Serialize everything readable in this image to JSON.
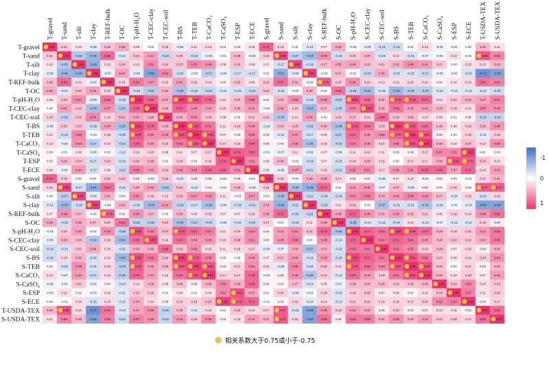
{
  "chart_data": {
    "type": "heatmap",
    "labels": [
      "T-gravel",
      "T-sand",
      "T-silt",
      "T-clay",
      "T-REF-bulk",
      "T-OC",
      "T-pH-H₂O",
      "T-CEC-clay",
      "T-CEC-soil",
      "T-BS",
      "T-TEB",
      "T-CaCO₃",
      "T-CaSO₄",
      "T-ESP",
      "T-ECE",
      "S-gravel",
      "S-sand",
      "S-silt",
      "S-clay",
      "S-REF-bulk",
      "S-OC",
      "S-pH-H₂O",
      "S-CEC-clay",
      "S-CEC-soil",
      "S-BS",
      "S-TEB",
      "S-CaCO₃",
      "S-CaSO₄",
      "S-ESP",
      "S-ECE",
      "T-USDA-TEX",
      "S-USDA-TEX"
    ],
    "values": [
      [
        1.0,
        0.21,
        0.1,
        -0.09,
        0.25,
        0.35,
        0.08,
        0.0,
        0.18,
        -0.08,
        0.11,
        0.14,
        0.04,
        0.03,
        0.09,
        0.74,
        0.16,
        0.0,
        -0.12,
        0.07,
        0.36,
        -0.03,
        -0.08,
        -0.19,
        -0.19,
        0.02,
        0.14,
        -0.06,
        -0.03,
        0.0,
        0.29,
        0.11
      ],
      [
        0.21,
        1.0,
        -0.32,
        -0.46,
        0.69,
        -0.12,
        0.24,
        0.41,
        -0.23,
        0.2,
        -0.19,
        -0.08,
        -0.01,
        0.29,
        -0.06,
        0.19,
        0.9,
        -0.27,
        -0.43,
        0.49,
        -0.18,
        0.2,
        0.3,
        -0.15,
        0.14,
        -0.16,
        -0.07,
        -0.04,
        0.12,
        -0.01,
        0.8,
        0.55
      ],
      [
        0.1,
        -0.32,
        1.0,
        -0.49,
        0.12,
        0.24,
        0.12,
        0.51,
        0.22,
        0.23,
        0.53,
        0.48,
        0.09,
        0.24,
        0.09,
        0.07,
        -0.17,
        0.9,
        -0.19,
        0.27,
        0.35,
        0.4,
        0.26,
        0.21,
        0.32,
        0.49,
        0.42,
        0.21,
        0.0,
        0.13,
        0.13,
        0.29
      ],
      [
        -0.09,
        -0.46,
        -0.49,
        1.0,
        -0.07,
        0.4,
        -0.09,
        -0.58,
        0.54,
        -0.19,
        -0.03,
        -0.27,
        -0.06,
        -0.17,
        -0.17,
        0.02,
        -0.51,
        -0.09,
        0.94,
        -0.02,
        0.27,
        -0.02,
        -0.23,
        0.36,
        -0.16,
        -0.15,
        -0.21,
        -0.05,
        -0.03,
        -0.15,
        -0.71,
        -0.59
      ],
      [
        0.25,
        0.69,
        0.12,
        -0.07,
        1.0,
        0.15,
        0.62,
        0.47,
        0.15,
        0.4,
        0.16,
        0.14,
        0.03,
        0.23,
        0.09,
        0.22,
        0.67,
        0.31,
        -0.04,
        0.76,
        0.2,
        0.49,
        0.18,
        0.13,
        0.13,
        0.15,
        0.14,
        0.04,
        0.1,
        0.14,
        0.63,
        0.56
      ],
      [
        0.35,
        -0.12,
        0.24,
        0.4,
        0.15,
        1.0,
        -0.18,
        -0.31,
        0.31,
        -0.38,
        -0.19,
        -0.24,
        -0.12,
        -0.16,
        -0.22,
        0.23,
        -0.15,
        -0.03,
        0.32,
        0.02,
        0.63,
        -0.26,
        -0.41,
        -0.15,
        -0.43,
        -0.29,
        -0.29,
        -0.14,
        -0.11,
        -0.13,
        -0.13,
        -0.2
      ],
      [
        0.08,
        0.24,
        0.51,
        -0.09,
        0.62,
        -0.18,
        1.0,
        0.69,
        0.37,
        0.9,
        0.82,
        0.7,
        0.13,
        0.26,
        0.58,
        0.04,
        0.3,
        0.5,
        -0.18,
        0.48,
        -0.26,
        0.85,
        0.65,
        0.32,
        0.78,
        0.78,
        0.71,
        0.13,
        0.22,
        0.34,
        0.37,
        0.57
      ],
      [
        0.0,
        0.41,
        0.22,
        -0.38,
        0.47,
        -0.31,
        0.69,
        1.0,
        0.29,
        0.7,
        0.49,
        0.4,
        0.16,
        0.3,
        0.42,
        -0.04,
        0.4,
        0.19,
        -0.43,
        0.27,
        -0.26,
        0.53,
        0.87,
        0.32,
        0.62,
        0.4,
        0.41,
        0.29,
        0.19,
        0.14,
        0.5,
        0.48
      ],
      [
        0.18,
        -0.25,
        0.23,
        0.54,
        0.15,
        0.31,
        0.37,
        0.29,
        1.0,
        0.3,
        0.48,
        0.23,
        0.08,
        0.02,
        0.22,
        0.22,
        -0.33,
        0.13,
        0.42,
        0.0,
        0.22,
        0.27,
        0.16,
        0.68,
        0.24,
        0.29,
        0.13,
        0.09,
        0.01,
        0.05,
        -0.25,
        -0.24
      ],
      [
        -0.08,
        0.2,
        0.23,
        -0.19,
        0.4,
        -0.38,
        0.9,
        0.7,
        0.3,
        1.0,
        0.82,
        0.61,
        0.11,
        0.19,
        0.48,
        -0.1,
        0.24,
        0.25,
        -0.25,
        0.3,
        -0.38,
        0.79,
        0.64,
        0.23,
        0.94,
        0.8,
        0.63,
        0.26,
        0.09,
        0.19,
        0.26,
        0.46
      ],
      [
        0.11,
        -0.19,
        0.53,
        -0.03,
        0.16,
        -0.19,
        0.82,
        0.49,
        0.48,
        0.82,
        1.0,
        0.8,
        0.07,
        0.03,
        0.53,
        0.04,
        -0.12,
        0.47,
        -0.17,
        0.09,
        -0.27,
        0.67,
        0.45,
        0.5,
        0.75,
        0.93,
        0.81,
        0.05,
        0.01,
        0.18,
        -0.11,
        0.19
      ],
      [
        0.14,
        -0.08,
        0.48,
        -0.27,
        0.14,
        -0.24,
        0.7,
        0.4,
        0.23,
        0.61,
        0.8,
        1.0,
        0.17,
        0.16,
        0.69,
        0.05,
        0.04,
        0.48,
        -0.38,
        0.15,
        -0.23,
        0.57,
        0.46,
        0.15,
        0.55,
        0.81,
        0.97,
        0.3,
        0.1,
        0.27,
        0.14,
        0.5
      ],
      [
        0.04,
        -0.01,
        0.09,
        -0.06,
        0.03,
        -0.12,
        0.13,
        0.16,
        0.08,
        0.11,
        0.07,
        0.17,
        1.0,
        0.74,
        0.69,
        -0.03,
        -0.07,
        0.11,
        -0.08,
        0.07,
        -0.08,
        0.11,
        0.15,
        0.11,
        0.03,
        0.04,
        0.17,
        0.53,
        0.51,
        0.92,
        0.01,
        0.03
      ],
      [
        0.03,
        0.29,
        0.24,
        -0.17,
        0.23,
        -0.16,
        0.26,
        0.3,
        0.02,
        0.19,
        0.03,
        0.16,
        0.74,
        1.0,
        0.51,
        0.06,
        0.3,
        -0.03,
        -0.19,
        0.07,
        -0.15,
        0.19,
        0.29,
        0.15,
        0.0,
        0.17,
        0.17,
        0.33,
        0.82,
        0.75,
        0.24,
        0.13
      ],
      [
        0.09,
        -0.06,
        0.44,
        -0.17,
        0.09,
        -0.22,
        0.58,
        0.42,
        0.22,
        0.48,
        0.53,
        0.69,
        0.69,
        0.51,
        1.0,
        0.06,
        -0.08,
        0.47,
        -0.21,
        0.15,
        -0.22,
        0.52,
        0.51,
        0.17,
        0.46,
        0.51,
        0.7,
        0.69,
        0.37,
        0.71,
        0.14,
        0.42
      ],
      [
        0.74,
        0.19,
        0.02,
        0.0,
        0.23,
        0.23,
        0.06,
        -0.04,
        0.22,
        -0.1,
        0.06,
        0.05,
        -0.03,
        0.06,
        -0.01,
        1.0,
        0.18,
        -0.01,
        0.33,
        0.36,
        0.17,
        0.04,
        0.04,
        -0.09,
        0.07,
        0.12,
        -0.04,
        0.04,
        0.01,
        -0.01,
        0.17,
        0.31
      ],
      [
        0.16,
        0.9,
        -0.17,
        -0.51,
        0.67,
        -0.15,
        0.3,
        0.4,
        -0.33,
        0.24,
        -0.12,
        0.04,
        -0.04,
        0.3,
        -0.08,
        0.18,
        1.0,
        -0.38,
        -0.49,
        0.71,
        0.01,
        0.41,
        0.45,
        -0.07,
        0.27,
        -0.09,
        0.06,
        0.03,
        0.18,
        0.03,
        0.77,
        0.77
      ],
      [
        0.0,
        -0.27,
        0.9,
        -0.09,
        0.31,
        -0.03,
        0.5,
        0.19,
        0.13,
        0.25,
        0.47,
        0.48,
        0.11,
        -0.03,
        0.47,
        -0.01,
        -0.38,
        1.0,
        -0.21,
        -0.2,
        -0.18,
        0.51,
        0.59,
        0.33,
        0.44,
        0.55,
        0.48,
        0.27,
        -0.09,
        0.16,
        -0.15,
        0.15
      ],
      [
        -0.12,
        -0.43,
        -0.19,
        0.94,
        -0.04,
        0.32,
        -0.18,
        -0.43,
        0.42,
        -0.25,
        -0.17,
        -0.38,
        -0.08,
        -0.19,
        -0.21,
        0.33,
        -0.49,
        -0.21,
        1.0,
        -0.22,
        0.11,
        0.24,
        0.0,
        -0.37,
        -0.16,
        -0.16,
        -0.35,
        -0.14,
        -0.03,
        -0.1,
        -0.59,
        -0.59
      ],
      [
        0.07,
        0.49,
        0.27,
        -0.02,
        0.76,
        0.02,
        0.48,
        0.27,
        0.0,
        0.3,
        0.09,
        0.15,
        0.07,
        0.07,
        0.15,
        0.36,
        0.71,
        -0.2,
        -0.22,
        1.0,
        0.38,
        0.72,
        0.48,
        0.31,
        0.43,
        0.25,
        0.21,
        0.08,
        0.18,
        0.14,
        0.48,
        0.65
      ],
      [
        0.36,
        -0.18,
        0.35,
        0.27,
        0.2,
        0.63,
        -0.26,
        -0.26,
        0.22,
        -0.38,
        -0.27,
        -0.23,
        -0.08,
        -0.15,
        -0.22,
        0.17,
        0.01,
        -0.18,
        0.11,
        0.38,
        1.0,
        -0.35,
        -0.13,
        -0.15,
        -0.19,
        0.12,
        -0.13,
        -0.07,
        -0.13,
        -0.13,
        0.19,
        0.06
      ],
      [
        -0.03,
        0.2,
        0.4,
        -0.02,
        0.49,
        -0.26,
        0.85,
        0.53,
        0.27,
        0.79,
        0.67,
        0.57,
        0.11,
        0.19,
        0.52,
        0.04,
        0.41,
        0.51,
        0.24,
        0.72,
        -0.35,
        1.0,
        0.71,
        0.63,
        0.89,
        0.79,
        0.67,
        0.28,
        0.18,
        0.21,
        0.44,
        0.62
      ],
      [
        -0.08,
        0.3,
        0.26,
        -0.32,
        0.18,
        -0.41,
        0.65,
        0.87,
        0.16,
        0.64,
        0.45,
        0.46,
        0.15,
        0.29,
        0.51,
        0.04,
        0.45,
        0.59,
        0.0,
        0.48,
        -0.13,
        0.71,
        1.0,
        0.61,
        0.71,
        0.65,
        0.43,
        0.28,
        0.24,
        0.22,
        0.34,
        0.6
      ],
      [
        -0.19,
        -0.15,
        0.21,
        0.36,
        0.13,
        -0.15,
        0.32,
        0.32,
        0.68,
        0.23,
        0.5,
        0.15,
        0.11,
        0.15,
        0.17,
        -0.09,
        -0.07,
        0.33,
        -0.37,
        0.31,
        -0.15,
        0.63,
        0.61,
        1.0,
        0.61,
        0.53,
        0.19,
        0.28,
        0.07,
        0.15,
        0.05,
        0.31
      ],
      [
        -0.19,
        0.14,
        0.32,
        -0.16,
        0.13,
        -0.43,
        0.83,
        0.62,
        0.24,
        0.94,
        0.75,
        0.55,
        0.03,
        0.0,
        0.46,
        0.07,
        0.27,
        0.44,
        -0.16,
        0.43,
        -0.19,
        0.89,
        0.71,
        0.61,
        1.0,
        0.81,
        0.61,
        0.22,
        0.09,
        0.16,
        0.2,
        0.5
      ],
      [
        0.02,
        -0.16,
        0.49,
        -0.15,
        0.15,
        -0.29,
        0.78,
        0.4,
        0.29,
        0.8,
        0.93,
        0.81,
        0.04,
        0.17,
        0.51,
        0.12,
        -0.09,
        0.55,
        -0.16,
        0.25,
        0.12,
        0.79,
        0.65,
        0.53,
        0.81,
        1.0,
        0.83,
        0.25,
        0.02,
        0.17,
        0.04,
        0.3
      ],
      [
        0.14,
        -0.07,
        0.42,
        -0.21,
        0.14,
        -0.29,
        0.71,
        0.41,
        0.13,
        0.63,
        0.81,
        0.97,
        0.17,
        0.17,
        0.7,
        -0.04,
        0.06,
        0.48,
        -0.35,
        0.21,
        -0.13,
        0.67,
        0.43,
        0.19,
        0.61,
        0.83,
        1.0,
        0.3,
        0.12,
        0.2,
        0.07,
        0.42
      ],
      [
        -0.06,
        -0.04,
        0.21,
        -0.05,
        0.04,
        -0.14,
        0.13,
        0.29,
        0.09,
        0.26,
        0.05,
        0.3,
        0.53,
        0.33,
        0.69,
        0.04,
        0.03,
        0.27,
        -0.14,
        0.08,
        -0.07,
        0.28,
        0.28,
        0.28,
        0.22,
        0.25,
        0.3,
        1.0,
        0.24,
        0.52,
        0.13,
        0.22
      ],
      [
        -0.03,
        0.12,
        0.02,
        -0.03,
        0.1,
        -0.11,
        0.22,
        0.19,
        0.01,
        0.09,
        0.01,
        0.1,
        0.51,
        0.82,
        0.37,
        0.01,
        0.18,
        -0.09,
        -0.03,
        0.18,
        -0.13,
        0.18,
        0.24,
        0.07,
        0.09,
        0.02,
        0.12,
        0.24,
        1.0,
        0.57,
        0.11,
        0.2
      ],
      [
        0.0,
        -0.01,
        0.13,
        -0.15,
        0.14,
        -0.13,
        0.34,
        0.14,
        0.05,
        0.19,
        0.18,
        0.27,
        0.92,
        0.75,
        0.71,
        -0.01,
        0.03,
        0.16,
        -0.1,
        0.14,
        -0.13,
        0.21,
        0.22,
        0.15,
        0.16,
        0.17,
        0.2,
        0.52,
        0.57,
        1.0,
        0.04,
        0.17
      ],
      [
        0.29,
        0.8,
        0.13,
        -0.71,
        0.63,
        -0.13,
        0.37,
        0.5,
        -0.25,
        0.26,
        -0.11,
        0.14,
        0.01,
        0.24,
        0.14,
        0.17,
        0.77,
        -0.15,
        -0.59,
        0.48,
        0.19,
        0.44,
        0.34,
        0.05,
        0.2,
        0.04,
        0.07,
        0.13,
        0.11,
        0.04,
        1.0,
        0.66
      ],
      [
        0.11,
        0.55,
        0.29,
        -0.59,
        0.56,
        -0.2,
        0.57,
        0.48,
        -0.24,
        0.46,
        0.19,
        0.5,
        0.03,
        0.13,
        0.42,
        0.31,
        0.77,
        0.15,
        -0.59,
        0.65,
        0.06,
        0.62,
        0.6,
        0.31,
        0.5,
        0.3,
        0.42,
        0.22,
        0.2,
        0.17,
        0.66,
        1.0
      ]
    ],
    "colorbar": {
      "ticks": [
        "-1",
        "0",
        "1"
      ],
      "colors": {
        "negative": "#3f6fc4",
        "zero": "#ffffff",
        "positive": "#e8336d"
      }
    },
    "marker_threshold": 0.75,
    "legend": {
      "label": "相关系数大于0.75或小于-0.75",
      "marker_color": "#f3c34a"
    }
  }
}
